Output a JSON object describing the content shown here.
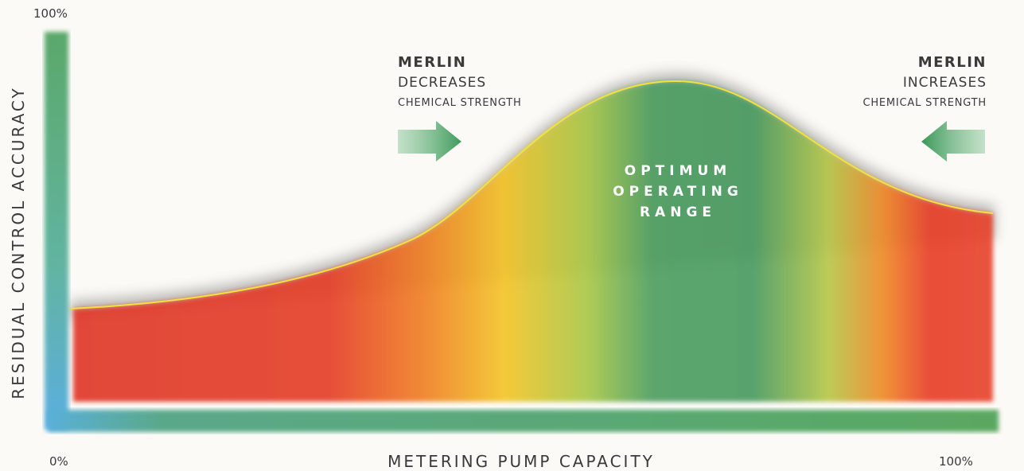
{
  "axes": {
    "y_label": "RESIDUAL CONTROL ACCURACY",
    "y_top": "100%",
    "x_label": "METERING PUMP CAPACITY",
    "x_start": "0%",
    "x_end": "100%"
  },
  "left_note": {
    "brand": "MERLIN",
    "action": "DECREASES",
    "object": "CHEMICAL STRENGTH"
  },
  "right_note": {
    "brand": "MERLIN",
    "action": "INCREASES",
    "object": "CHEMICAL STRENGTH"
  },
  "center_label": [
    "OPTIMUM",
    "OPERATING",
    "RANGE"
  ]
}
